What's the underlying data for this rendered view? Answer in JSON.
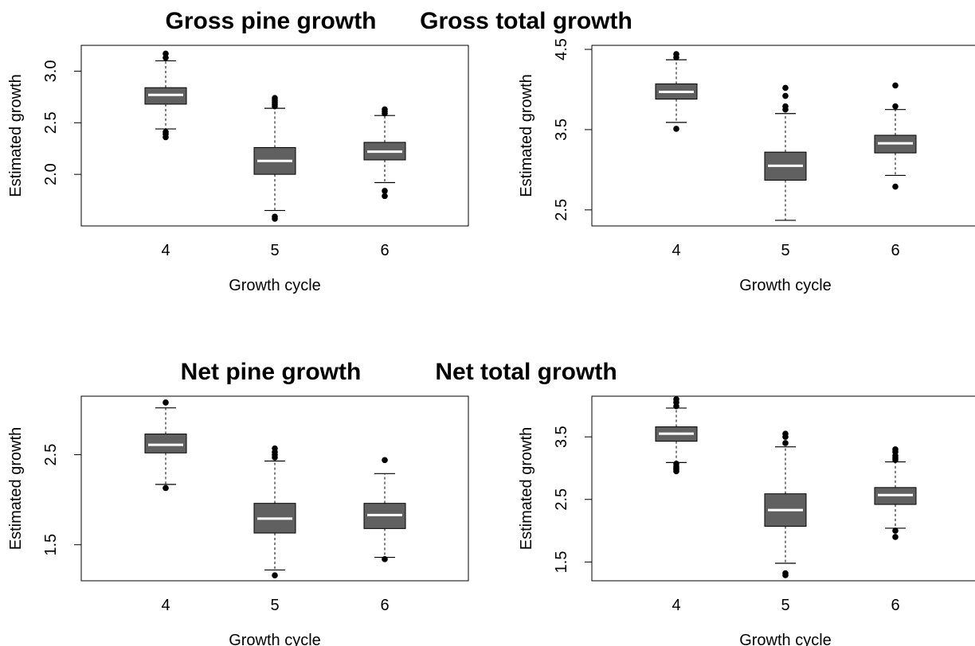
{
  "chart_data": [
    {
      "type": "box",
      "title": "Gross pine growth",
      "xlabel": "Growth cycle",
      "ylabel": "Estimated growth",
      "ylim": [
        1.5,
        3.25
      ],
      "yticks": [
        "2.0",
        "2.5",
        "3.0"
      ],
      "categories": [
        "4",
        "5",
        "6"
      ],
      "boxes": [
        {
          "q1": 2.68,
          "median": 2.77,
          "q3": 2.84,
          "whisker_low": 2.44,
          "whisker_high": 3.1,
          "outliers": [
            2.36,
            2.39,
            2.41,
            3.13,
            3.17
          ]
        },
        {
          "q1": 2.0,
          "median": 2.13,
          "q3": 2.26,
          "whisker_low": 1.65,
          "whisker_high": 2.64,
          "outliers": [
            1.57,
            1.59,
            2.66,
            2.68,
            2.7,
            2.72,
            2.74
          ]
        },
        {
          "q1": 2.14,
          "median": 2.22,
          "q3": 2.31,
          "whisker_low": 1.92,
          "whisker_high": 2.57,
          "outliers": [
            1.79,
            1.84,
            2.59,
            2.61,
            2.63
          ]
        }
      ]
    },
    {
      "type": "box",
      "title": "Gross total growth",
      "xlabel": "Growth cycle",
      "ylabel": "Estimated growth",
      "ylim": [
        2.3,
        4.55
      ],
      "yticks": [
        "2.5",
        "3.5",
        "4.5"
      ],
      "categories": [
        "4",
        "5",
        "6"
      ],
      "boxes": [
        {
          "q1": 3.88,
          "median": 3.97,
          "q3": 4.07,
          "whisker_low": 3.59,
          "whisker_high": 4.37,
          "outliers": [
            3.51,
            4.4,
            4.44
          ]
        },
        {
          "q1": 2.87,
          "median": 3.05,
          "q3": 3.22,
          "whisker_low": 2.37,
          "whisker_high": 3.7,
          "outliers": [
            3.75,
            3.79,
            3.92,
            4.02
          ]
        },
        {
          "q1": 3.21,
          "median": 3.33,
          "q3": 3.43,
          "whisker_low": 2.93,
          "whisker_high": 3.75,
          "outliers": [
            2.79,
            3.79,
            4.05
          ]
        }
      ]
    },
    {
      "type": "box",
      "title": "Net pine growth",
      "xlabel": "Growth cycle",
      "ylabel": "Estimated growth",
      "ylim": [
        1.1,
        3.15
      ],
      "yticks": [
        "1.5",
        "2.5"
      ],
      "categories": [
        "4",
        "5",
        "6"
      ],
      "boxes": [
        {
          "q1": 2.52,
          "median": 2.61,
          "q3": 2.73,
          "whisker_low": 2.17,
          "whisker_high": 3.02,
          "outliers": [
            2.13,
            3.08
          ]
        },
        {
          "q1": 1.63,
          "median": 1.79,
          "q3": 1.96,
          "whisker_low": 1.22,
          "whisker_high": 2.43,
          "outliers": [
            1.16,
            2.47,
            2.5,
            2.53,
            2.57
          ]
        },
        {
          "q1": 1.68,
          "median": 1.83,
          "q3": 1.96,
          "whisker_low": 1.36,
          "whisker_high": 2.29,
          "outliers": [
            1.34,
            2.44
          ]
        }
      ]
    },
    {
      "type": "box",
      "title": "Net total growth",
      "xlabel": "Growth cycle",
      "ylabel": "Estimated growth",
      "ylim": [
        1.2,
        4.15
      ],
      "yticks": [
        "1.5",
        "2.5",
        "3.5"
      ],
      "categories": [
        "4",
        "5",
        "6"
      ],
      "boxes": [
        {
          "q1": 3.43,
          "median": 3.55,
          "q3": 3.66,
          "whisker_low": 3.09,
          "whisker_high": 3.96,
          "outliers": [
            2.95,
            2.98,
            3.0,
            3.03,
            3.07,
            3.99,
            4.05,
            4.1
          ]
        },
        {
          "q1": 2.07,
          "median": 2.33,
          "q3": 2.59,
          "whisker_low": 1.48,
          "whisker_high": 3.34,
          "outliers": [
            1.29,
            1.32,
            3.4,
            3.5,
            3.55
          ]
        },
        {
          "q1": 2.42,
          "median": 2.57,
          "q3": 2.69,
          "whisker_low": 2.04,
          "whisker_high": 3.1,
          "outliers": [
            1.9,
            2.0,
            3.13,
            3.16,
            3.2,
            3.26,
            3.3
          ]
        }
      ]
    }
  ]
}
